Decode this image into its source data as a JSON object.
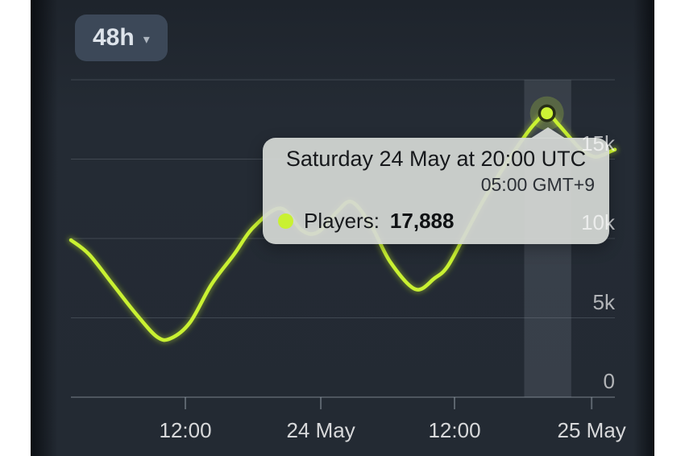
{
  "colors": {
    "accent": "#c9f132",
    "panel_bg": "#232a33",
    "tooltip_bg": "#d5d8d5",
    "button_bg": "#3c4858",
    "grid": "#949ea8"
  },
  "range_selector": {
    "label": "48h",
    "caret": "▾"
  },
  "tooltip": {
    "title": "Saturday 24 May at 20:00 UTC",
    "subtitle": "05:00 GMT+9",
    "series_label": "Players:",
    "value": "17,888"
  },
  "chart_data": {
    "type": "line",
    "title": "",
    "xlabel": "",
    "ylabel": "Players",
    "ylim": [
      0,
      20000
    ],
    "x_span_hours": 48,
    "grid": true,
    "series": [
      {
        "name": "Players",
        "color": "#c9f132",
        "points": [
          [
            0,
            9900
          ],
          [
            1.6,
            9000
          ],
          [
            3.7,
            7100
          ],
          [
            5.8,
            5200
          ],
          [
            7.6,
            3800
          ],
          [
            8.8,
            3700
          ],
          [
            10.5,
            4700
          ],
          [
            12.4,
            7100
          ],
          [
            14.4,
            9000
          ],
          [
            16.1,
            10700
          ],
          [
            18.5,
            11900
          ],
          [
            20.4,
            10500
          ],
          [
            21.8,
            10400
          ],
          [
            23.5,
            11700
          ],
          [
            24.8,
            12300
          ],
          [
            26.5,
            10800
          ],
          [
            28.2,
            8500
          ],
          [
            30.4,
            6800
          ],
          [
            32.1,
            7500
          ],
          [
            33.2,
            8200
          ],
          [
            34.6,
            10000
          ],
          [
            36.4,
            12400
          ],
          [
            38.2,
            14500
          ],
          [
            40,
            16400
          ],
          [
            41,
            17300
          ],
          [
            42,
            17888
          ],
          [
            43,
            17200
          ],
          [
            44.1,
            16300
          ],
          [
            45.1,
            15550
          ],
          [
            46.2,
            15150
          ],
          [
            46.9,
            15250
          ],
          [
            47.5,
            15450
          ],
          [
            48,
            15600
          ]
        ]
      }
    ],
    "x_ticks": [
      {
        "label": "12:00",
        "hour": 10.1
      },
      {
        "label": "24 May",
        "hour": 22.05
      },
      {
        "label": "12:00",
        "hour": 33.85
      },
      {
        "label": "25 May",
        "hour": 45.95
      }
    ],
    "y_ticks": [
      {
        "label": "15k",
        "value": 15000
      },
      {
        "label": "10k",
        "value": 10000
      },
      {
        "label": "5k",
        "value": 5000
      },
      {
        "label": "0",
        "value": 0
      }
    ],
    "gridline_values": [
      20000,
      15000,
      10000,
      5000
    ],
    "highlighted_point": {
      "hour": 42,
      "players": 17888,
      "label": "Saturday 24 May at 20:00 UTC"
    },
    "highlight_band_hours": [
      40.0,
      44.15
    ]
  }
}
